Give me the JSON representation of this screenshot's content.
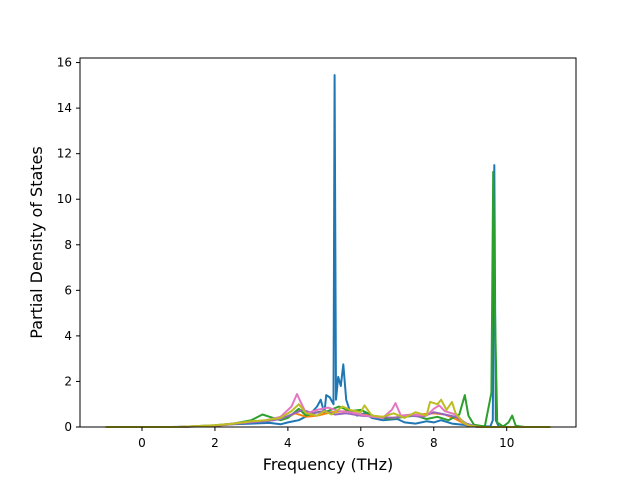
{
  "chart_data": {
    "type": "line",
    "title": "",
    "xlabel": "Frequency (THz)",
    "ylabel": "Partial Density of States",
    "xlim": [
      -1.7,
      11.9
    ],
    "ylim": [
      0,
      16.2
    ],
    "xticks": [
      0,
      2,
      4,
      6,
      8,
      10
    ],
    "yticks": [
      0,
      2,
      4,
      6,
      8,
      10,
      12,
      14,
      16
    ],
    "grid": false,
    "legend": "none",
    "series": [
      {
        "color": "#1f77b4",
        "points": [
          [
            -1.0,
            0
          ],
          [
            0.8,
            0
          ],
          [
            1.5,
            0.02
          ],
          [
            2.0,
            0.06
          ],
          [
            2.5,
            0.12
          ],
          [
            3.0,
            0.15
          ],
          [
            3.5,
            0.18
          ],
          [
            3.8,
            0.12
          ],
          [
            4.0,
            0.2
          ],
          [
            4.3,
            0.3
          ],
          [
            4.6,
            0.55
          ],
          [
            4.8,
            0.9
          ],
          [
            4.9,
            1.2
          ],
          [
            5.0,
            0.6
          ],
          [
            5.05,
            1.4
          ],
          [
            5.15,
            1.3
          ],
          [
            5.25,
            1.0
          ],
          [
            5.28,
            15.45
          ],
          [
            5.32,
            1.2
          ],
          [
            5.38,
            2.2
          ],
          [
            5.45,
            1.8
          ],
          [
            5.52,
            2.75
          ],
          [
            5.6,
            1.2
          ],
          [
            5.7,
            0.7
          ],
          [
            5.9,
            0.5
          ],
          [
            6.1,
            0.6
          ],
          [
            6.3,
            0.4
          ],
          [
            6.6,
            0.3
          ],
          [
            7.0,
            0.35
          ],
          [
            7.2,
            0.2
          ],
          [
            7.5,
            0.15
          ],
          [
            7.8,
            0.25
          ],
          [
            8.0,
            0.2
          ],
          [
            8.2,
            0.3
          ],
          [
            8.5,
            0.15
          ],
          [
            8.8,
            0.1
          ],
          [
            9.0,
            0.05
          ],
          [
            9.55,
            0.02
          ],
          [
            9.62,
            0.3
          ],
          [
            9.66,
            11.5
          ],
          [
            9.7,
            0.3
          ],
          [
            9.78,
            0.02
          ],
          [
            10.1,
            0
          ],
          [
            11.2,
            0
          ]
        ]
      },
      {
        "color": "#ff7f0e",
        "points": [
          [
            -1.0,
            0
          ],
          [
            1.0,
            0
          ],
          [
            2.0,
            0.05
          ],
          [
            2.6,
            0.15
          ],
          [
            3.2,
            0.25
          ],
          [
            3.6,
            0.3
          ],
          [
            4.0,
            0.45
          ],
          [
            4.2,
            0.6
          ],
          [
            4.5,
            0.45
          ],
          [
            4.8,
            0.5
          ],
          [
            5.2,
            0.65
          ],
          [
            5.6,
            0.7
          ],
          [
            6.0,
            0.55
          ],
          [
            6.3,
            0.5
          ],
          [
            6.8,
            0.4
          ],
          [
            7.2,
            0.45
          ],
          [
            7.6,
            0.55
          ],
          [
            8.0,
            0.6
          ],
          [
            8.3,
            0.55
          ],
          [
            8.6,
            0.35
          ],
          [
            8.9,
            0.1
          ],
          [
            9.2,
            0
          ],
          [
            11.2,
            0
          ]
        ]
      },
      {
        "color": "#2ca02c",
        "points": [
          [
            -1.0,
            0
          ],
          [
            1.0,
            0
          ],
          [
            2.0,
            0.08
          ],
          [
            2.5,
            0.15
          ],
          [
            3.0,
            0.3
          ],
          [
            3.3,
            0.55
          ],
          [
            3.5,
            0.45
          ],
          [
            3.8,
            0.3
          ],
          [
            4.0,
            0.4
          ],
          [
            4.3,
            0.8
          ],
          [
            4.5,
            0.5
          ],
          [
            4.8,
            0.65
          ],
          [
            5.1,
            0.7
          ],
          [
            5.4,
            0.9
          ],
          [
            5.7,
            0.7
          ],
          [
            6.0,
            0.75
          ],
          [
            6.2,
            0.6
          ],
          [
            6.4,
            0.45
          ],
          [
            6.8,
            0.35
          ],
          [
            7.2,
            0.45
          ],
          [
            7.5,
            0.5
          ],
          [
            7.8,
            0.35
          ],
          [
            8.1,
            0.45
          ],
          [
            8.4,
            0.3
          ],
          [
            8.7,
            0.55
          ],
          [
            8.85,
            1.4
          ],
          [
            8.95,
            0.5
          ],
          [
            9.1,
            0.1
          ],
          [
            9.4,
            0.02
          ],
          [
            9.58,
            1.5
          ],
          [
            9.63,
            11.2
          ],
          [
            9.68,
            5.0
          ],
          [
            9.74,
            0.2
          ],
          [
            9.9,
            0.02
          ],
          [
            10.05,
            0.2
          ],
          [
            10.15,
            0.5
          ],
          [
            10.25,
            0.05
          ],
          [
            10.5,
            0
          ],
          [
            11.2,
            0
          ]
        ]
      },
      {
        "color": "#9467bd",
        "points": [
          [
            -1.0,
            0
          ],
          [
            1.0,
            0
          ],
          [
            2.0,
            0.06
          ],
          [
            2.8,
            0.18
          ],
          [
            3.4,
            0.25
          ],
          [
            3.8,
            0.35
          ],
          [
            4.1,
            0.55
          ],
          [
            4.4,
            0.75
          ],
          [
            4.7,
            0.6
          ],
          [
            5.0,
            0.7
          ],
          [
            5.3,
            0.55
          ],
          [
            5.6,
            0.6
          ],
          [
            6.0,
            0.5
          ],
          [
            6.4,
            0.45
          ],
          [
            6.9,
            0.4
          ],
          [
            7.3,
            0.5
          ],
          [
            7.7,
            0.45
          ],
          [
            8.0,
            0.65
          ],
          [
            8.3,
            0.55
          ],
          [
            8.6,
            0.45
          ],
          [
            8.9,
            0.15
          ],
          [
            9.2,
            0
          ],
          [
            11.2,
            0
          ]
        ]
      },
      {
        "color": "#e377c2",
        "points": [
          [
            -1.0,
            0
          ],
          [
            1.0,
            0
          ],
          [
            2.0,
            0.07
          ],
          [
            2.8,
            0.2
          ],
          [
            3.4,
            0.3
          ],
          [
            3.8,
            0.45
          ],
          [
            4.1,
            0.9
          ],
          [
            4.25,
            1.45
          ],
          [
            4.35,
            1.1
          ],
          [
            4.5,
            0.6
          ],
          [
            4.8,
            0.75
          ],
          [
            5.1,
            0.85
          ],
          [
            5.4,
            0.7
          ],
          [
            5.7,
            0.65
          ],
          [
            6.0,
            0.55
          ],
          [
            6.3,
            0.45
          ],
          [
            6.6,
            0.4
          ],
          [
            6.85,
            0.75
          ],
          [
            6.95,
            1.05
          ],
          [
            7.1,
            0.5
          ],
          [
            7.4,
            0.55
          ],
          [
            7.8,
            0.5
          ],
          [
            8.0,
            0.8
          ],
          [
            8.15,
            0.95
          ],
          [
            8.3,
            0.7
          ],
          [
            8.6,
            0.55
          ],
          [
            8.9,
            0.1
          ],
          [
            9.2,
            0
          ],
          [
            11.2,
            0
          ]
        ]
      },
      {
        "color": "#bcbd22",
        "points": [
          [
            -1.0,
            0
          ],
          [
            1.0,
            0
          ],
          [
            2.0,
            0.08
          ],
          [
            2.5,
            0.15
          ],
          [
            3.0,
            0.25
          ],
          [
            3.4,
            0.3
          ],
          [
            3.8,
            0.4
          ],
          [
            4.1,
            0.7
          ],
          [
            4.3,
            1.0
          ],
          [
            4.5,
            0.6
          ],
          [
            4.8,
            0.5
          ],
          [
            5.0,
            0.7
          ],
          [
            5.2,
            0.55
          ],
          [
            5.5,
            0.9
          ],
          [
            5.7,
            0.75
          ],
          [
            6.0,
            0.65
          ],
          [
            6.1,
            0.95
          ],
          [
            6.3,
            0.5
          ],
          [
            6.6,
            0.45
          ],
          [
            6.9,
            0.6
          ],
          [
            7.2,
            0.4
          ],
          [
            7.5,
            0.65
          ],
          [
            7.8,
            0.5
          ],
          [
            7.9,
            1.1
          ],
          [
            8.1,
            1.0
          ],
          [
            8.2,
            1.2
          ],
          [
            8.35,
            0.75
          ],
          [
            8.5,
            1.1
          ],
          [
            8.6,
            0.6
          ],
          [
            8.8,
            0.2
          ],
          [
            9.0,
            0.05
          ],
          [
            9.3,
            0
          ],
          [
            11.2,
            0
          ]
        ]
      }
    ]
  }
}
